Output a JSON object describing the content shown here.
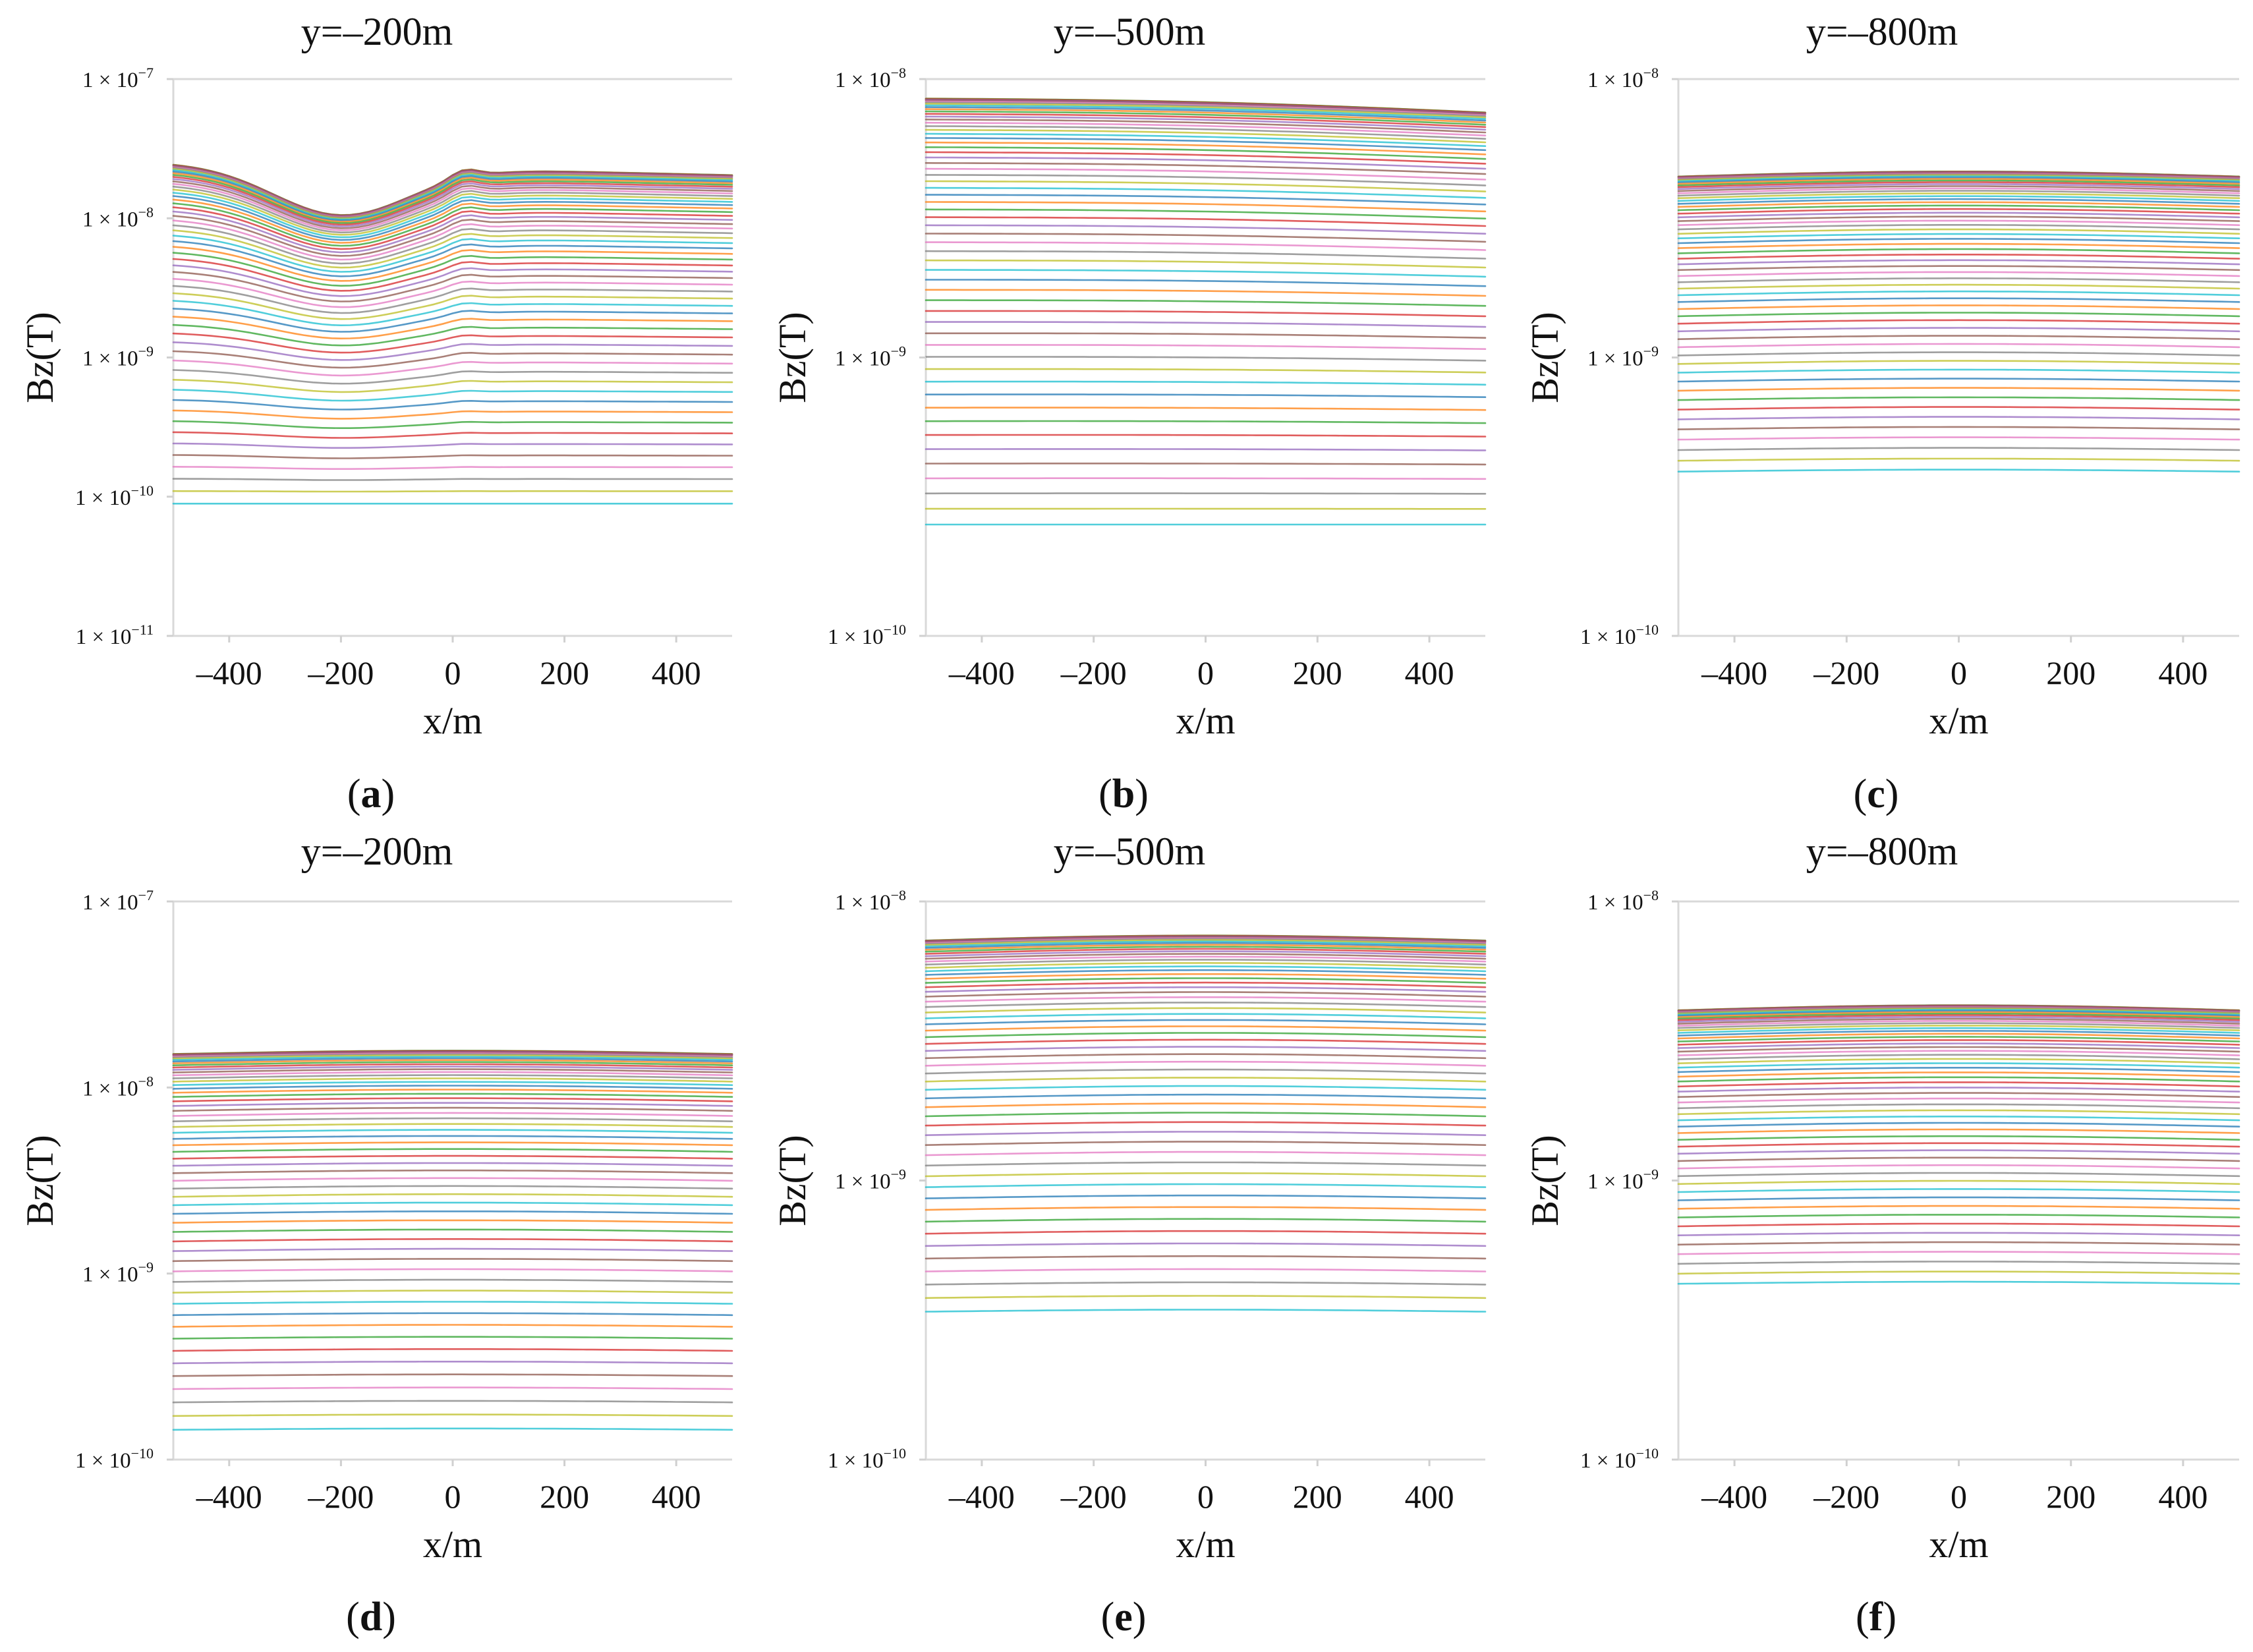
{
  "figure": {
    "tick_label_prefix": "1 × 10",
    "colors": [
      "#1f77b4",
      "#ff7f0e",
      "#2ca02c",
      "#d62728",
      "#9467bd",
      "#8c564b",
      "#e377c2",
      "#7f7f7f",
      "#bcbd22",
      "#17becf"
    ]
  },
  "chart_data": [
    {
      "id": "a",
      "type": "line",
      "label_open": "(",
      "label_letter": "a",
      "label_close": ")",
      "title": "y=–200m",
      "xlabel": "x/m",
      "ylabel": "Bz(T)",
      "xlim": [
        -500,
        500
      ],
      "xticks": [
        -400,
        -200,
        0,
        200,
        400
      ],
      "xtick_labels": [
        "–400",
        "–200",
        "0",
        "200",
        "400"
      ],
      "yscale": "log",
      "ylim": [
        1e-11,
        1e-07
      ],
      "yticks": [
        1e-11,
        1e-10,
        1e-09,
        1e-08,
        1e-07
      ],
      "ytick_exponents": [
        "−11",
        "−10",
        "−9",
        "−8",
        "−7"
      ],
      "n_series": 60,
      "series_top_log10": -7.6,
      "series_bottom_log10": -10.05,
      "curve_spacing_power": 2.2,
      "anomaly": "trough",
      "anomaly_center_x": -200,
      "anomaly_depth_decades": 0.35
    },
    {
      "id": "b",
      "type": "line",
      "label_open": "(",
      "label_letter": "b",
      "label_close": ")",
      "title": "y=–500m",
      "xlabel": "x/m",
      "ylabel": "Bz(T)",
      "xlim": [
        -500,
        500
      ],
      "xticks": [
        -400,
        -200,
        0,
        200,
        400
      ],
      "xtick_labels": [
        "–400",
        "–200",
        "0",
        "200",
        "400"
      ],
      "yscale": "log",
      "ylim": [
        1e-10,
        1e-08
      ],
      "yticks": [
        1e-10,
        1e-09,
        1e-08
      ],
      "ytick_exponents": [
        "−10",
        "−9",
        "−8"
      ],
      "n_series": 60,
      "series_top_log10": -8.07,
      "series_bottom_log10": -9.6,
      "curve_spacing_power": 2.2,
      "anomaly": "tilt",
      "tilt_decades": 0.05
    },
    {
      "id": "c",
      "type": "line",
      "label_open": "(",
      "label_letter": "c",
      "label_close": ")",
      "title": "y=–800m",
      "xlabel": "x/m",
      "ylabel": "Bz(T)",
      "xlim": [
        -500,
        500
      ],
      "xticks": [
        -400,
        -200,
        0,
        200,
        400
      ],
      "xtick_labels": [
        "–400",
        "–200",
        "0",
        "200",
        "400"
      ],
      "yscale": "log",
      "ylim": [
        1e-10,
        1e-08
      ],
      "yticks": [
        1e-10,
        1e-09,
        1e-08
      ],
      "ytick_exponents": [
        "−10",
        "−9",
        "−8"
      ],
      "n_series": 60,
      "series_top_log10": -8.35,
      "series_bottom_log10": -9.41,
      "curve_spacing_power": 2.2,
      "anomaly": "flat"
    },
    {
      "id": "d",
      "type": "line",
      "label_open": "(",
      "label_letter": "d",
      "label_close": ")",
      "title": "y=–200m",
      "xlabel": "x/m",
      "ylabel": "Bz(T)",
      "xlim": [
        -500,
        500
      ],
      "xticks": [
        -400,
        -200,
        0,
        200,
        400
      ],
      "xtick_labels": [
        "–400",
        "–200",
        "0",
        "200",
        "400"
      ],
      "yscale": "log",
      "ylim": [
        1e-10,
        1e-07
      ],
      "yticks": [
        1e-10,
        1e-09,
        1e-08,
        1e-07
      ],
      "ytick_exponents": [
        "−10",
        "−9",
        "−8",
        "−7"
      ],
      "n_series": 60,
      "series_top_log10": -7.82,
      "series_bottom_log10": -9.84,
      "curve_spacing_power": 2.2,
      "anomaly": "flat"
    },
    {
      "id": "e",
      "type": "line",
      "label_open": "(",
      "label_letter": "e",
      "label_close": ")",
      "title": "y=–500m",
      "xlabel": "x/m",
      "ylabel": "Bz(T)",
      "xlim": [
        -500,
        500
      ],
      "xticks": [
        -400,
        -200,
        0,
        200,
        400
      ],
      "xtick_labels": [
        "–400",
        "–200",
        "0",
        "200",
        "400"
      ],
      "yscale": "log",
      "ylim": [
        1e-10,
        1e-08
      ],
      "yticks": [
        1e-10,
        1e-09,
        1e-08
      ],
      "ytick_exponents": [
        "−10",
        "−9",
        "−8"
      ],
      "n_series": 60,
      "series_top_log10": -8.14,
      "series_bottom_log10": -9.47,
      "curve_spacing_power": 2.2,
      "anomaly": "flat"
    },
    {
      "id": "f",
      "type": "line",
      "label_open": "(",
      "label_letter": "f",
      "label_close": ")",
      "title": "y=–800m",
      "xlabel": "x/m",
      "ylabel": "Bz(T)",
      "xlim": [
        -500,
        500
      ],
      "xticks": [
        -400,
        -200,
        0,
        200,
        400
      ],
      "xtick_labels": [
        "–400",
        "–200",
        "0",
        "200",
        "400"
      ],
      "yscale": "log",
      "ylim": [
        1e-10,
        1e-08
      ],
      "yticks": [
        1e-10,
        1e-09,
        1e-08
      ],
      "ytick_exponents": [
        "−10",
        "−9",
        "−8"
      ],
      "n_series": 60,
      "series_top_log10": -8.39,
      "series_bottom_log10": -9.37,
      "curve_spacing_power": 2.2,
      "anomaly": "flat"
    }
  ]
}
